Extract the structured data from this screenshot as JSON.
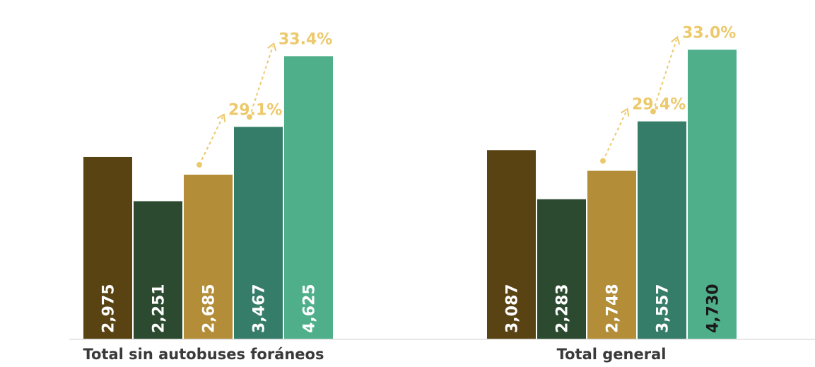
{
  "chart_data": {
    "type": "bar",
    "categories": [
      "Total sin autobuses foráneos",
      "Total general"
    ],
    "series": [
      {
        "values": [
          2975,
          3087
        ],
        "color": "#5a4313",
        "value_labels": [
          "2,975",
          "3,087"
        ]
      },
      {
        "values": [
          2251,
          2283
        ],
        "color": "#2c4a2f",
        "value_labels": [
          "2,251",
          "2,283"
        ]
      },
      {
        "values": [
          2685,
          2748
        ],
        "color": "#b38d38",
        "value_labels": [
          "2,685",
          "2,748"
        ]
      },
      {
        "values": [
          3467,
          3557
        ],
        "color": "#367d69",
        "value_labels": [
          "3,467",
          "3,557"
        ]
      },
      {
        "values": [
          4625,
          4730
        ],
        "color": "#4faf8b",
        "value_labels": [
          "4,625",
          "4,730"
        ]
      }
    ],
    "annotations": [
      {
        "category": 0,
        "from_series": 2,
        "to_series": 3,
        "text": "29.1%"
      },
      {
        "category": 0,
        "from_series": 3,
        "to_series": 4,
        "text": "33.4%"
      },
      {
        "category": 1,
        "from_series": 2,
        "to_series": 3,
        "text": "29.4%"
      },
      {
        "category": 1,
        "from_series": 3,
        "to_series": 4,
        "text": "33.0%"
      }
    ],
    "annotation_color": "#ecc96b",
    "baseline_color": "#cccccc",
    "ylim": [
      0,
      4800
    ],
    "grid": false,
    "legend": "none"
  }
}
